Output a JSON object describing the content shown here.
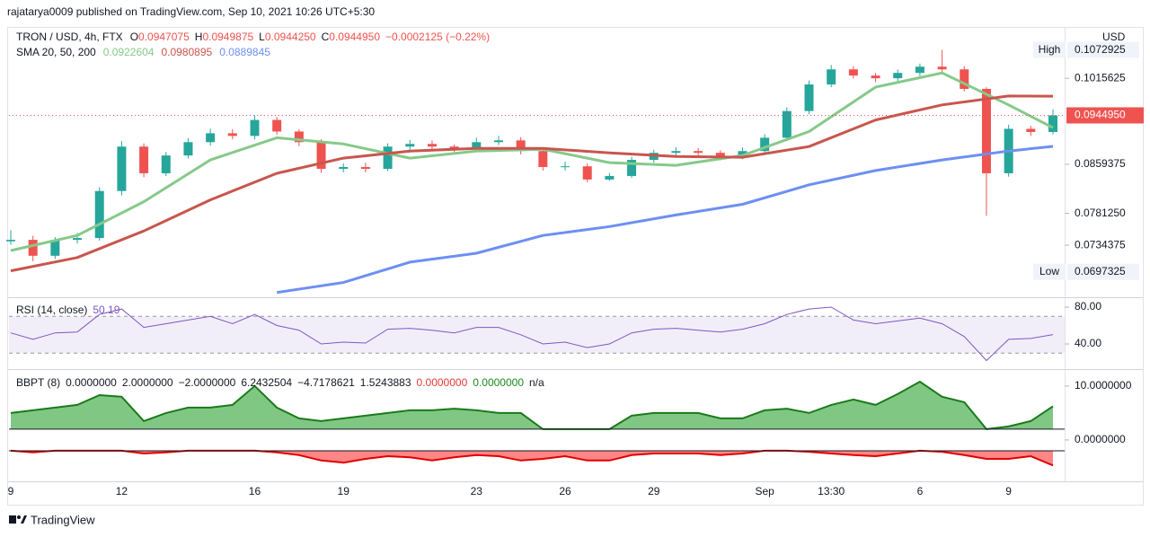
{
  "header": "rajatarya0009 published on TradingView.com, Sep 10, 2021 10:26 UTC+5:30",
  "footer": "TradingView",
  "chart_data": [
    {
      "type": "candlestick",
      "title": "TRON / USD, 4h, FTX",
      "legend": [
        {
          "key": "O",
          "value": "0.0947075"
        },
        {
          "key": "H",
          "value": "0.0949875"
        },
        {
          "key": "L",
          "value": "0.0944250"
        },
        {
          "key": "C",
          "value": "0.0944950"
        }
      ],
      "change": "−0.0002125 (−0.22%)",
      "indicator": "SMA 20, 50, 200",
      "currency": "USD",
      "categories": [
        "9",
        null,
        null,
        null,
        null,
        "12",
        null,
        null,
        null,
        null,
        null,
        "16",
        null,
        null,
        null,
        "19",
        null,
        null,
        null,
        null,
        null,
        "23",
        null,
        null,
        null,
        "26",
        null,
        null,
        null,
        "29",
        null,
        null,
        null,
        null,
        "Sep",
        null,
        null,
        "13:30",
        null,
        null,
        null,
        "6",
        null,
        null,
        null,
        "9",
        null,
        null
      ],
      "open": [
        0.074,
        0.07421,
        0.07195,
        0.07421,
        0.07447,
        0.08159,
        0.08894,
        0.08445,
        0.08742,
        0.08971,
        0.09127,
        0.0908,
        0.09366,
        0.09158,
        0.08971,
        0.08518,
        0.08548,
        0.08518,
        0.08894,
        0.0894,
        0.08894,
        0.08848,
        0.08971,
        0.09002,
        0.08817,
        0.08548,
        0.0856,
        0.08343,
        0.08401,
        0.08667,
        0.08787,
        0.08817,
        0.08787,
        0.08726,
        0.08817,
        0.09048,
        0.09529,
        0.10035,
        0.10333,
        0.10209,
        0.10156,
        0.10262,
        0.10387,
        0.10333,
        0.09948,
        0.08445,
        0.09206,
        0.0915
      ],
      "high": [
        0.0756,
        0.0748,
        0.0746,
        0.0752,
        0.0822,
        0.0899,
        0.0895,
        0.088,
        0.0904,
        0.0921,
        0.092,
        0.0945,
        0.0942,
        0.092,
        0.0902,
        0.0861,
        0.0862,
        0.0895,
        0.0901,
        0.09,
        0.0893,
        0.0905,
        0.0908,
        0.0906,
        0.0888,
        0.0864,
        0.0861,
        0.0845,
        0.0872,
        0.0884,
        0.0888,
        0.0887,
        0.0883,
        0.0888,
        0.0911,
        0.096,
        0.1011,
        0.1042,
        0.104,
        0.1026,
        0.1033,
        0.1045,
        0.1072925,
        0.104,
        0.0998,
        0.0928,
        0.0926,
        0.0956
      ],
      "low": [
        0.0735,
        0.0712,
        0.0715,
        0.0737,
        0.0741,
        0.0809,
        0.0838,
        0.084,
        0.0869,
        0.0891,
        0.0902,
        0.0902,
        0.091,
        0.089,
        0.0845,
        0.0846,
        0.0846,
        0.0848,
        0.0883,
        0.0884,
        0.0879,
        0.088,
        0.0892,
        0.0876,
        0.0849,
        0.0849,
        0.083,
        0.0832,
        0.0837,
        0.0862,
        0.0874,
        0.0873,
        0.0866,
        0.0868,
        0.0876,
        0.0899,
        0.0947,
        0.0998,
        0.1015,
        0.1008,
        0.101,
        0.102,
        0.1025,
        0.099,
        0.07776,
        0.0839,
        0.0908,
        0.0911
      ],
      "close": [
        0.07421,
        0.07195,
        0.07421,
        0.07447,
        0.08159,
        0.08894,
        0.08445,
        0.08742,
        0.08971,
        0.09127,
        0.0908,
        0.09366,
        0.09158,
        0.08971,
        0.08518,
        0.08548,
        0.08518,
        0.08894,
        0.0894,
        0.08894,
        0.08848,
        0.08971,
        0.09002,
        0.08817,
        0.08548,
        0.0856,
        0.08343,
        0.08401,
        0.08667,
        0.08787,
        0.08817,
        0.08787,
        0.08726,
        0.08817,
        0.09048,
        0.09529,
        0.10035,
        0.10333,
        0.10209,
        0.10156,
        0.10262,
        0.10387,
        0.10333,
        0.09948,
        0.08445,
        0.09206,
        0.0915,
        0.094495
      ],
      "up_color": "#26a69a",
      "down_color": "#ef5350",
      "series": [
        {
          "color": "#86c98a",
          "x": [
            0,
            3,
            6,
            9,
            12,
            15,
            18,
            21,
            24,
            27,
            30,
            33,
            36,
            39,
            42,
            45,
            47
          ],
          "values": [
            0.07269,
            0.07485,
            0.07992,
            0.08667,
            0.09048,
            0.0894,
            0.08697,
            0.08817,
            0.08848,
            0.08622,
            0.08577,
            0.08742,
            0.09158,
            0.09983,
            0.10262,
            0.09644,
            0.0922604
          ]
        },
        {
          "color": "#c8564e",
          "x": [
            0,
            3,
            6,
            9,
            12,
            15,
            18,
            21,
            24,
            27,
            30,
            33,
            36,
            39,
            42,
            45,
            47
          ],
          "values": [
            0.06987,
            0.0717,
            0.0755,
            0.08019,
            0.08445,
            0.08697,
            0.08817,
            0.08863,
            0.08863,
            0.08787,
            0.08726,
            0.08712,
            0.08894,
            0.09366,
            0.09644,
            0.09812,
            0.0980895
          ]
        },
        {
          "color": "#6d8ff2",
          "x": [
            12,
            15,
            18,
            21,
            24,
            27,
            30,
            33,
            36,
            39,
            42,
            45,
            47
          ],
          "values": [
            0.067,
            0.06831,
            0.07107,
            0.07231,
            0.07485,
            0.07615,
            0.07788,
            0.07951,
            0.08258,
            0.0849,
            0.08667,
            0.08817,
            0.0889845
          ]
        }
      ],
      "log_scale": true,
      "ylim": [
        0.0665,
        0.1122
      ],
      "yticks": [
        0.0734375,
        {
          "value": 0.078125,
          "label": "0.0781250"
        },
        0.0859375,
        0.1015625
      ],
      "high_marker": {
        "label": "High",
        "value": 0.1072925
      },
      "low_marker": {
        "label": "Low",
        "value": 0.0697325
      },
      "last_price": {
        "value": 0.094495,
        "label": "0.0944950"
      }
    },
    {
      "type": "line",
      "title": "RSI (14, close)",
      "color": "#7e57c2",
      "values": [
        52,
        45,
        52,
        53,
        72,
        78,
        58,
        62,
        66,
        70,
        62,
        72,
        60,
        55,
        40,
        42,
        41,
        56,
        57,
        55,
        52,
        58,
        58,
        50,
        40,
        42,
        36,
        40,
        52,
        56,
        57,
        55,
        53,
        56,
        62,
        72,
        78,
        80,
        66,
        62,
        65,
        68,
        62,
        48,
        22,
        45,
        46,
        50.19
      ],
      "ylim": [
        13.7,
        88.8
      ],
      "yticks": [
        {
          "value": 40,
          "label": "40.00"
        },
        {
          "value": 80,
          "label": "80.00"
        }
      ],
      "band": [
        30,
        70
      ],
      "band_color": "#7e57c2"
    },
    {
      "type": "area",
      "title": "BBPT (8)",
      "legend": [
        {
          "text": "0.0000000",
          "color": "#131722"
        },
        {
          "text": "2.0000000",
          "color": "#131722"
        },
        {
          "text": "−2.0000000",
          "color": "#131722"
        },
        {
          "text": "6.2432504",
          "color": "#131722"
        },
        {
          "text": "−4.7178621",
          "color": "#131722"
        },
        {
          "text": "1.5243883",
          "color": "#131722"
        },
        {
          "text": "0.0000000",
          "color": "#e53935"
        },
        {
          "text": "0.0000000",
          "color": "#1b8a1b"
        },
        {
          "text": "n/a",
          "color": "#131722"
        }
      ],
      "series": [
        {
          "color": "#1b7a1b",
          "fill": "#4caf50",
          "values": [
            5,
            5.5,
            6,
            6.5,
            8.3,
            8,
            3.5,
            5,
            6,
            6,
            6.5,
            10,
            6,
            4,
            3.5,
            4,
            4.5,
            5,
            5.5,
            5.5,
            5.8,
            5.5,
            5,
            5,
            2,
            2,
            2,
            2,
            4.5,
            5,
            5,
            5,
            4,
            4,
            5.5,
            5.8,
            5,
            6.5,
            7.5,
            6.5,
            8.5,
            10.8,
            8,
            7,
            2,
            2.5,
            3.5,
            6.2432504
          ]
        },
        {
          "color": "#e00000",
          "fill": "#ff5252",
          "values": [
            -2,
            -2.3,
            -2,
            -2,
            -2,
            -2,
            -2.5,
            -2.3,
            -2,
            -2,
            -2,
            -2,
            -2.3,
            -2.8,
            -3.8,
            -4.2,
            -3.5,
            -3,
            -3.2,
            -3.8,
            -3.2,
            -2.8,
            -3,
            -3.8,
            -3.5,
            -3,
            -3.8,
            -3.8,
            -2.8,
            -2.5,
            -2.5,
            -2.5,
            -2.8,
            -2.5,
            -2,
            -2,
            -2.2,
            -2.5,
            -2.8,
            -3,
            -2.5,
            -2,
            -2.2,
            -2.8,
            -3.5,
            -3.5,
            -3,
            -4.7178621
          ]
        }
      ],
      "levels": [
        2,
        -2
      ],
      "ylim": [
        -7.5,
        12.8
      ],
      "yticks": [
        {
          "value": 10,
          "label": "10.0000000"
        },
        {
          "value": 0,
          "label": "0.0000000"
        }
      ]
    }
  ]
}
